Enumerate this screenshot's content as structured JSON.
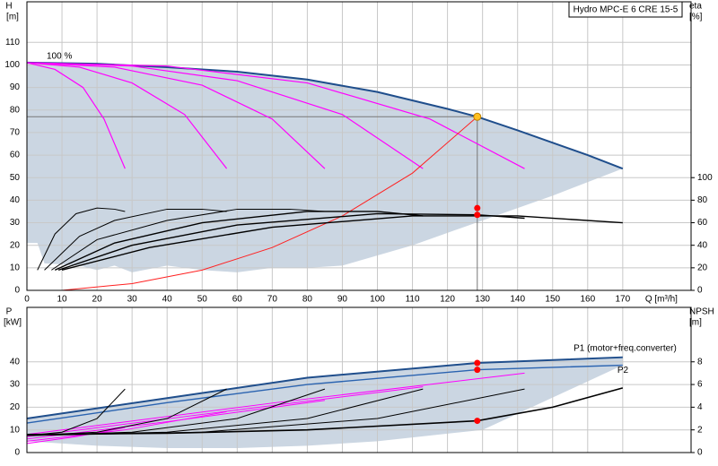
{
  "chart_data": [
    {
      "type": "line",
      "title": "Hydro MPC-E 6 CRE 15-5",
      "annotation": "100 %",
      "y_label": "H",
      "y_unit": "[m]",
      "y2_label": "eta",
      "y2_unit": "[%]",
      "x_label": "Q [m³/h]",
      "xlim": [
        0,
        189.5
      ],
      "xticks": [
        0,
        10,
        20,
        30,
        40,
        50,
        60,
        70,
        80,
        90,
        100,
        110,
        120,
        130,
        140,
        150,
        160,
        170
      ],
      "ylim": [
        0,
        128
      ],
      "yticks": [
        0,
        10,
        20,
        30,
        40,
        50,
        60,
        70,
        80,
        90,
        100,
        110
      ],
      "y2lim": [
        0,
        256
      ],
      "y2ticks": [
        0,
        20,
        40,
        60,
        80,
        100
      ],
      "grid": true,
      "region": {
        "color": "#cbd6e2",
        "x": [
          170,
          150,
          130,
          110,
          90,
          80,
          70,
          60,
          50,
          40,
          30,
          25,
          20,
          15,
          5,
          3,
          0
        ],
        "lower": [
          54,
          42,
          31,
          20,
          11,
          10,
          10,
          8,
          9,
          11,
          8,
          11,
          9,
          11,
          12,
          21,
          21
        ]
      },
      "series": [
        {
          "color": "#1f4e8c",
          "width": 2,
          "x": [
            0,
            20,
            40,
            60,
            80,
            100,
            120,
            128.5,
            140,
            160,
            170
          ],
          "values": [
            101,
            100.5,
            99,
            97,
            93.5,
            88,
            80.5,
            77,
            71,
            60,
            54
          ]
        },
        {
          "color": "#ff00ff",
          "width": 1.2,
          "x": [
            0,
            8,
            16,
            22,
            28
          ],
          "values": [
            101,
            98,
            90,
            76,
            54
          ]
        },
        {
          "color": "#ff00ff",
          "width": 1.2,
          "x": [
            0,
            15,
            30,
            45,
            57
          ],
          "values": [
            101,
            99,
            92,
            78,
            54
          ]
        },
        {
          "color": "#ff00ff",
          "width": 1.2,
          "x": [
            0,
            25,
            50,
            70,
            85
          ],
          "values": [
            101,
            99,
            91,
            76,
            54
          ]
        },
        {
          "color": "#ff00ff",
          "width": 1.2,
          "x": [
            0,
            30,
            60,
            90,
            113
          ],
          "values": [
            101,
            99.5,
            93,
            78,
            54
          ]
        },
        {
          "color": "#ff00ff",
          "width": 1.2,
          "x": [
            0,
            40,
            80,
            115,
            142
          ],
          "values": [
            101,
            99.5,
            92,
            76,
            54
          ]
        },
        {
          "color": "#ff2020",
          "width": 1,
          "x": [
            10,
            30,
            50,
            70,
            90,
            110,
            128.5
          ],
          "values": [
            0,
            3,
            9,
            19,
            33,
            52,
            77
          ]
        },
        {
          "color": "#000000",
          "width": 1,
          "axis": "y2",
          "x": [
            3,
            8,
            14,
            20,
            25,
            28
          ],
          "values": [
            18,
            50,
            68,
            73,
            72,
            70
          ]
        },
        {
          "color": "#000000",
          "width": 1,
          "axis": "y2",
          "x": [
            5,
            15,
            25,
            40,
            50,
            57
          ],
          "values": [
            18,
            48,
            62,
            72,
            72,
            70
          ]
        },
        {
          "color": "#000000",
          "width": 1,
          "axis": "y2",
          "x": [
            7,
            20,
            40,
            60,
            75,
            85
          ],
          "values": [
            18,
            45,
            62,
            72,
            72,
            70
          ]
        },
        {
          "color": "#000000",
          "width": 1.4,
          "axis": "y2",
          "x": [
            8,
            25,
            50,
            80,
            100,
            113
          ],
          "values": [
            18,
            42,
            60,
            70,
            70,
            66
          ]
        },
        {
          "color": "#000000",
          "width": 1.4,
          "axis": "y2",
          "x": [
            9,
            30,
            60,
            100,
            128.5,
            142
          ],
          "values": [
            18,
            40,
            58,
            68,
            67,
            64
          ]
        },
        {
          "color": "#000000",
          "width": 1.4,
          "axis": "y2",
          "x": [
            10,
            35,
            70,
            110,
            140,
            170
          ],
          "values": [
            18,
            38,
            56,
            66,
            66,
            60
          ]
        },
        {
          "color": "#ff0000",
          "style": "points",
          "axis": "y2",
          "x": [
            128.5,
            128.5
          ],
          "values": [
            73,
            67
          ]
        }
      ],
      "reference": {
        "x": 128.5,
        "y": 77,
        "color": "#ffc020"
      }
    },
    {
      "type": "line",
      "y_label": "P",
      "y_unit": "[kW]",
      "y2_label": "NPSH",
      "y2_unit": "[m]",
      "xlim": [
        0,
        189.5
      ],
      "xticks": [
        0,
        10,
        20,
        30,
        40,
        50,
        60,
        70,
        80,
        90,
        100,
        110,
        120,
        130,
        140,
        150,
        160,
        170
      ],
      "show_xtick_labels": false,
      "ylim": [
        0,
        64
      ],
      "yticks": [
        0,
        10,
        20,
        30,
        40
      ],
      "y2lim": [
        0,
        12.8
      ],
      "y2ticks": [
        0,
        2,
        4,
        6,
        8
      ],
      "grid": true,
      "region": {
        "color": "#cbd6e2",
        "x": [
          170,
          130,
          100,
          80,
          60,
          40,
          20,
          0
        ],
        "lower": [
          38.5,
          10,
          5,
          3,
          2,
          2,
          3,
          5
        ]
      },
      "series": [
        {
          "name": "P1 (motor+freq.converter)",
          "color": "#1f4e8c",
          "width": 2,
          "x": [
            0,
            40,
            80,
            128.5,
            170
          ],
          "values": [
            15,
            24,
            33,
            39.5,
            42
          ]
        },
        {
          "name": "P2",
          "color": "#2a63b0",
          "width": 1.4,
          "x": [
            0,
            40,
            80,
            128.5,
            170
          ],
          "values": [
            13,
            22,
            30,
            36.5,
            38.5
          ]
        },
        {
          "color": "#ff00ff",
          "width": 1,
          "x": [
            0,
            14,
            28
          ],
          "values": [
            4,
            7,
            11
          ]
        },
        {
          "color": "#ff00ff",
          "width": 1,
          "x": [
            0,
            28,
            57
          ],
          "values": [
            5,
            10,
            18
          ]
        },
        {
          "color": "#ff00ff",
          "width": 1,
          "x": [
            0,
            42,
            85
          ],
          "values": [
            6,
            14,
            23
          ]
        },
        {
          "color": "#ff00ff",
          "width": 1,
          "x": [
            0,
            56,
            113
          ],
          "values": [
            7,
            18,
            29
          ]
        },
        {
          "color": "#ff00ff",
          "width": 1,
          "x": [
            0,
            71,
            142
          ],
          "values": [
            8,
            22,
            35
          ]
        },
        {
          "color": "#000000",
          "width": 1,
          "axis": "y2",
          "x": [
            0,
            10,
            20,
            28
          ],
          "values": [
            1.5,
            1.8,
            3,
            5.6
          ]
        },
        {
          "color": "#000000",
          "width": 1,
          "axis": "y2",
          "x": [
            0,
            20,
            40,
            57
          ],
          "values": [
            1.5,
            1.8,
            3,
            5.6
          ]
        },
        {
          "color": "#000000",
          "width": 1,
          "axis": "y2",
          "x": [
            0,
            30,
            60,
            85
          ],
          "values": [
            1.5,
            1.8,
            3,
            5.6
          ]
        },
        {
          "color": "#000000",
          "width": 1,
          "axis": "y2",
          "x": [
            0,
            40,
            80,
            113
          ],
          "values": [
            1.5,
            1.8,
            3,
            5.6
          ]
        },
        {
          "color": "#000000",
          "width": 1,
          "axis": "y2",
          "x": [
            0,
            50,
            100,
            142
          ],
          "values": [
            1.5,
            1.8,
            3,
            5.6
          ]
        },
        {
          "color": "#000000",
          "width": 1.6,
          "axis": "y2",
          "x": [
            0,
            40,
            80,
            128.5,
            150,
            170
          ],
          "values": [
            1.6,
            1.7,
            2.0,
            2.8,
            4.0,
            5.7
          ]
        },
        {
          "color": "#ff0000",
          "style": "points",
          "x": [
            128.5,
            128.5
          ],
          "values": [
            39.5,
            36.5
          ]
        },
        {
          "color": "#ff0000",
          "style": "points",
          "axis": "y2",
          "x": [
            128.5
          ],
          "values": [
            2.8
          ]
        }
      ]
    }
  ]
}
